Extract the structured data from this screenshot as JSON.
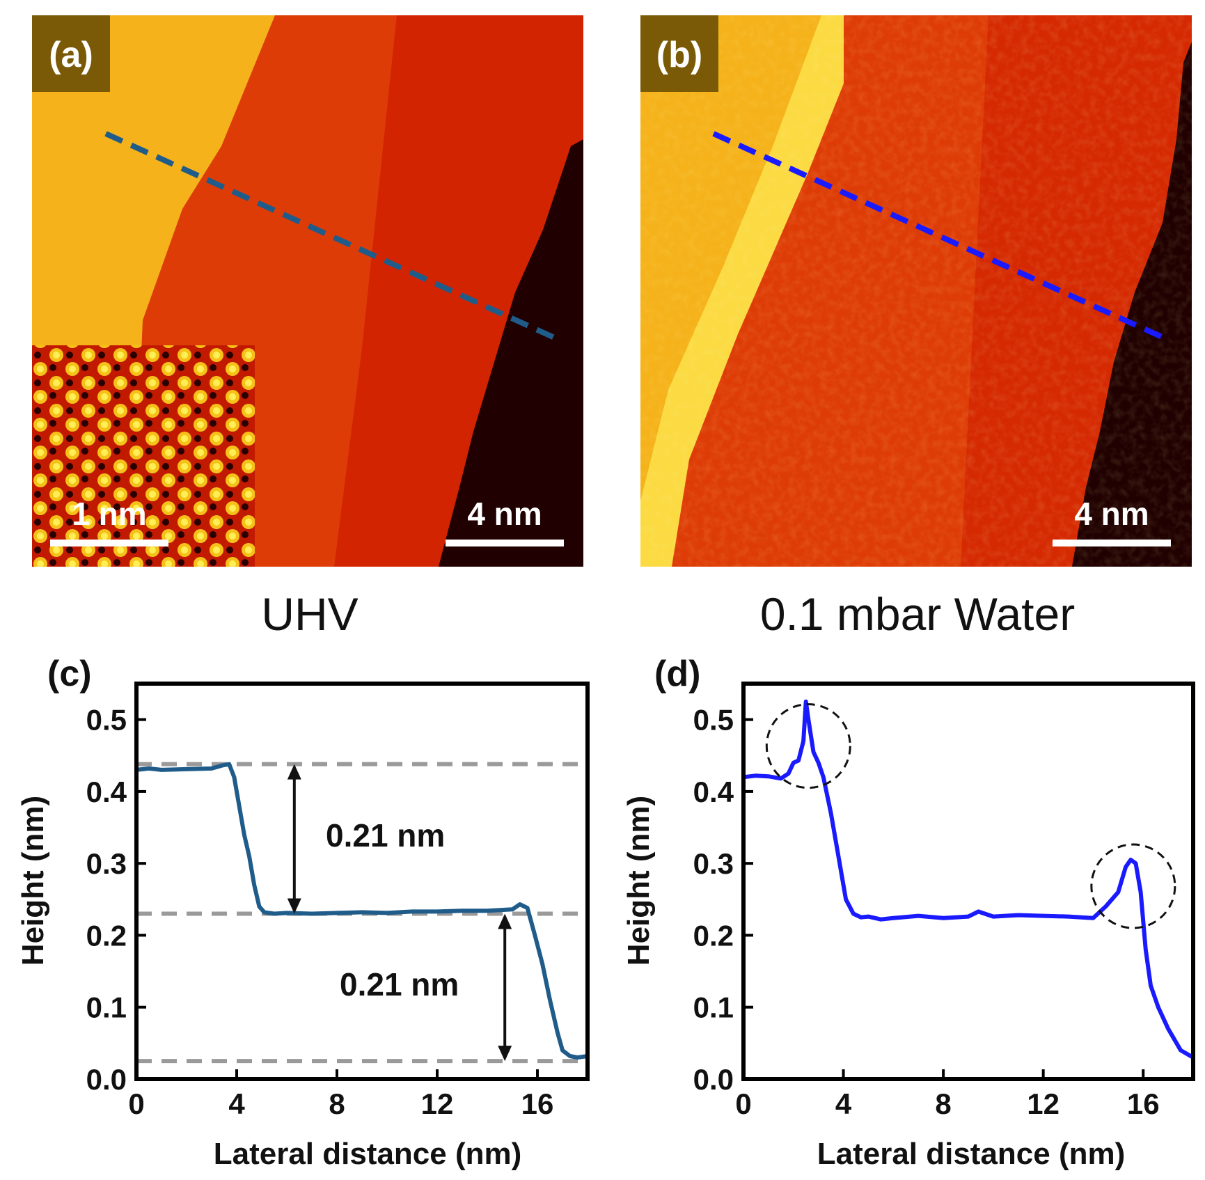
{
  "images": {
    "a": {
      "label": "(a)",
      "scale_bar": "4 nm",
      "inset_scale_bar": "1 nm",
      "caption": "UHV",
      "line_color": "#1f5c8a"
    },
    "b": {
      "label": "(b)",
      "scale_bar": "4 nm",
      "caption": "0.1 mbar Water",
      "line_color": "#1a1aff"
    }
  },
  "colors": {
    "terrace_top": "#f5b21a",
    "terrace_mid": "#de3c06",
    "terrace_right": "#c80000",
    "terrace_dark": "#200000",
    "label_box": "#7a5a06",
    "line_c": "#1f5c8a",
    "line_d": "#1a1aff",
    "ref_line": "#9a9a9a"
  },
  "chart_data": [
    {
      "panel": "(c)",
      "type": "line",
      "xlabel": "Lateral distance (nm)",
      "ylabel": "Height (nm)",
      "xlim": [
        0,
        18
      ],
      "ylim": [
        0.0,
        0.55
      ],
      "xticks": [
        "0",
        "4",
        "8",
        "12",
        "16"
      ],
      "yticks": [
        "0.0",
        "0.1",
        "0.2",
        "0.3",
        "0.4",
        "0.5"
      ],
      "series": [
        {
          "name": "UHV",
          "color": "#1f5c8a",
          "x": [
            0,
            0.5,
            1,
            2,
            3,
            3.4,
            3.7,
            3.9,
            4.1,
            4.3,
            4.5,
            4.7,
            4.9,
            5.1,
            5.5,
            6,
            7,
            8,
            9,
            10,
            11,
            12,
            13,
            14,
            14.5,
            15,
            15.3,
            15.6,
            15.9,
            16.2,
            16.5,
            16.8,
            17,
            17.3,
            17.6,
            18
          ],
          "y": [
            0.43,
            0.432,
            0.43,
            0.431,
            0.432,
            0.436,
            0.438,
            0.42,
            0.38,
            0.34,
            0.31,
            0.27,
            0.24,
            0.232,
            0.23,
            0.231,
            0.23,
            0.231,
            0.232,
            0.231,
            0.233,
            0.233,
            0.234,
            0.234,
            0.235,
            0.236,
            0.243,
            0.238,
            0.2,
            0.16,
            0.11,
            0.065,
            0.04,
            0.032,
            0.03,
            0.032
          ]
        }
      ],
      "reference_lines": [
        0.438,
        0.23,
        0.025
      ],
      "annotations": [
        "0.21 nm",
        "0.21 nm"
      ]
    },
    {
      "panel": "(d)",
      "type": "line",
      "xlabel": "Lateral distance (nm)",
      "ylabel": "Height (nm)",
      "xlim": [
        0,
        18
      ],
      "ylim": [
        0.0,
        0.55
      ],
      "xticks": [
        "0",
        "4",
        "8",
        "12",
        "16"
      ],
      "yticks": [
        "0.0",
        "0.1",
        "0.2",
        "0.3",
        "0.4",
        "0.5"
      ],
      "series": [
        {
          "name": "0.1 mbar Water",
          "color": "#1a1aff",
          "x": [
            0,
            0.5,
            1,
            1.5,
            1.8,
            2,
            2.2,
            2.4,
            2.5,
            2.6,
            2.8,
            3,
            3.2,
            3.5,
            3.8,
            4.1,
            4.4,
            4.7,
            5,
            5.5,
            6,
            7,
            8,
            9,
            9.4,
            10,
            11,
            12,
            13,
            14,
            14.5,
            15,
            15.3,
            15.5,
            15.7,
            15.9,
            16.1,
            16.3,
            16.6,
            17,
            17.5,
            18
          ],
          "y": [
            0.42,
            0.422,
            0.421,
            0.418,
            0.425,
            0.44,
            0.443,
            0.47,
            0.525,
            0.5,
            0.455,
            0.44,
            0.42,
            0.37,
            0.31,
            0.25,
            0.23,
            0.225,
            0.226,
            0.222,
            0.224,
            0.227,
            0.224,
            0.226,
            0.233,
            0.226,
            0.228,
            0.227,
            0.226,
            0.224,
            0.24,
            0.26,
            0.295,
            0.305,
            0.3,
            0.26,
            0.18,
            0.13,
            0.1,
            0.07,
            0.04,
            0.03
          ]
        }
      ],
      "highlight_peaks": [
        2.6,
        15.6
      ],
      "annotations": []
    }
  ]
}
